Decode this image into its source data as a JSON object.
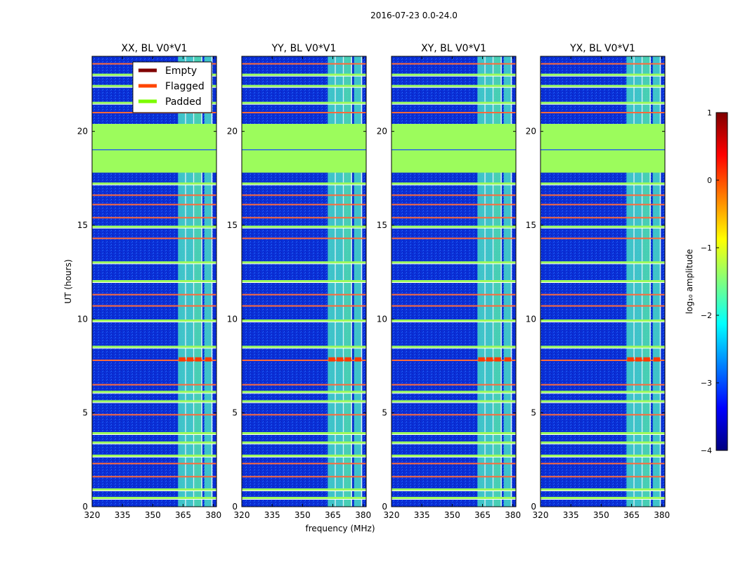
{
  "figure": {
    "suptitle": "2016-07-23 0.0-24.0",
    "xlabel": "frequency (MHz)",
    "ylabel": "UT (hours)"
  },
  "chart_data": {
    "type": "heatmap",
    "x": {
      "label": "frequency (MHz)",
      "range": [
        320,
        381.5
      ],
      "ticks": [
        320,
        335,
        350,
        365,
        380
      ]
    },
    "y": {
      "label": "UT (hours)",
      "range": [
        0,
        24
      ],
      "ticks": [
        0,
        5,
        10,
        15,
        20
      ]
    },
    "colorbar": {
      "label": "log₁₀ amplitude",
      "range": [
        -4,
        1
      ],
      "ticks": [
        1,
        0,
        -1,
        -2,
        -3,
        -4
      ],
      "colormap": "jet",
      "colors": [
        "#00007f",
        "#0000ff",
        "#007fff",
        "#00ffff",
        "#7fff7f",
        "#ffff00",
        "#ff7f00",
        "#ff0000",
        "#7f0000"
      ]
    },
    "legend": {
      "placement": "top-left of first panel",
      "entries": [
        {
          "label": "Empty",
          "color": "#800000"
        },
        {
          "label": "Flagged",
          "color": "#ff4500"
        },
        {
          "label": "Padded",
          "color": "#7cfc00"
        }
      ]
    },
    "padded_color": "#9cfc5c",
    "background_color": "#0a2fd6",
    "padded_time_range": [
      17.8,
      20.4
    ],
    "rfi_channel_bands_mhz": [
      [
        362.5,
        366.5
      ],
      [
        366.5,
        370.5
      ],
      [
        370.5,
        374.5
      ],
      [
        375.5,
        379.5
      ]
    ],
    "flagged_rows_ut": [
      1.6,
      2.3,
      4.9,
      6.5,
      7.8,
      10.7,
      11.3,
      14.3,
      15.4,
      16.1,
      16.6,
      21.0,
      23.6
    ],
    "padded_rows_ut": [
      0.45,
      0.9,
      2.7,
      3.4,
      3.9,
      5.6,
      6.1,
      8.5,
      9.9,
      12.0,
      13.0,
      14.9,
      17.2,
      21.5,
      22.4,
      23.0
    ],
    "panels": [
      {
        "title": "XX, BL V0*V1",
        "rfi_bands_active": [
          true,
          true,
          true,
          true
        ]
      },
      {
        "title": "YY, BL V0*V1",
        "rfi_bands_active": [
          true,
          true,
          true,
          true
        ]
      },
      {
        "title": "XY, BL V0*V1",
        "rfi_bands_active": [
          true,
          true,
          true,
          true
        ]
      },
      {
        "title": "YX, BL V0*V1",
        "rfi_bands_active": [
          true,
          true,
          true,
          true
        ]
      }
    ]
  }
}
